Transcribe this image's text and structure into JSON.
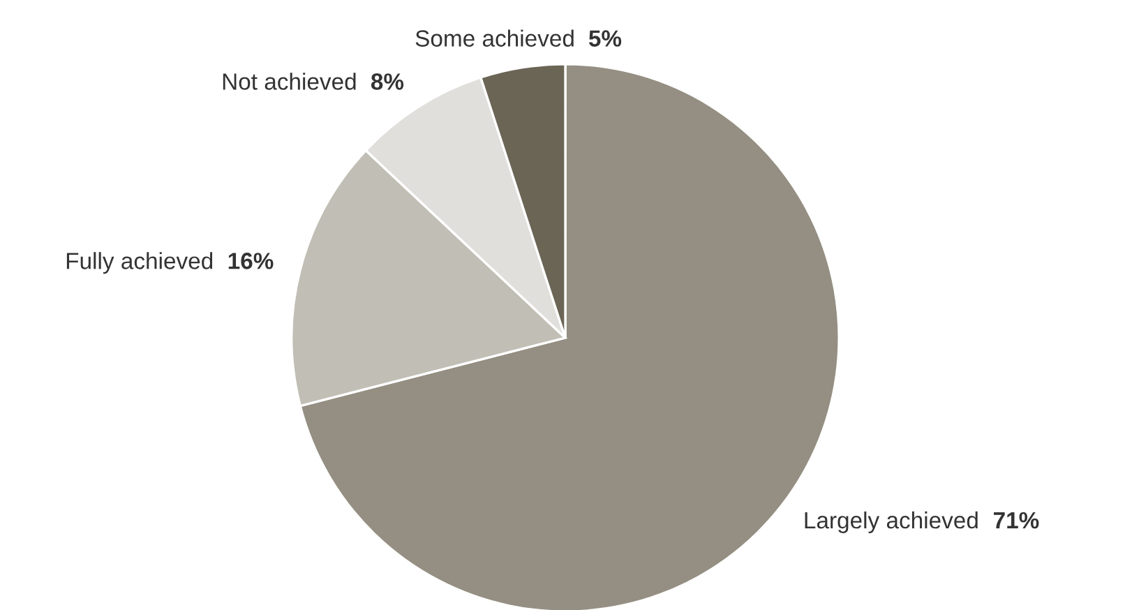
{
  "chart_data": {
    "type": "pie",
    "categories": [
      "Largely achieved",
      "Fully achieved",
      "Not achieved",
      "Some achieved"
    ],
    "values": [
      71,
      16,
      8,
      5
    ],
    "value_labels": [
      "71%",
      "16%",
      "8%",
      "5%"
    ],
    "colors": [
      "#948f82",
      "#c1beb5",
      "#e0dfdb",
      "#6b6556"
    ]
  }
}
